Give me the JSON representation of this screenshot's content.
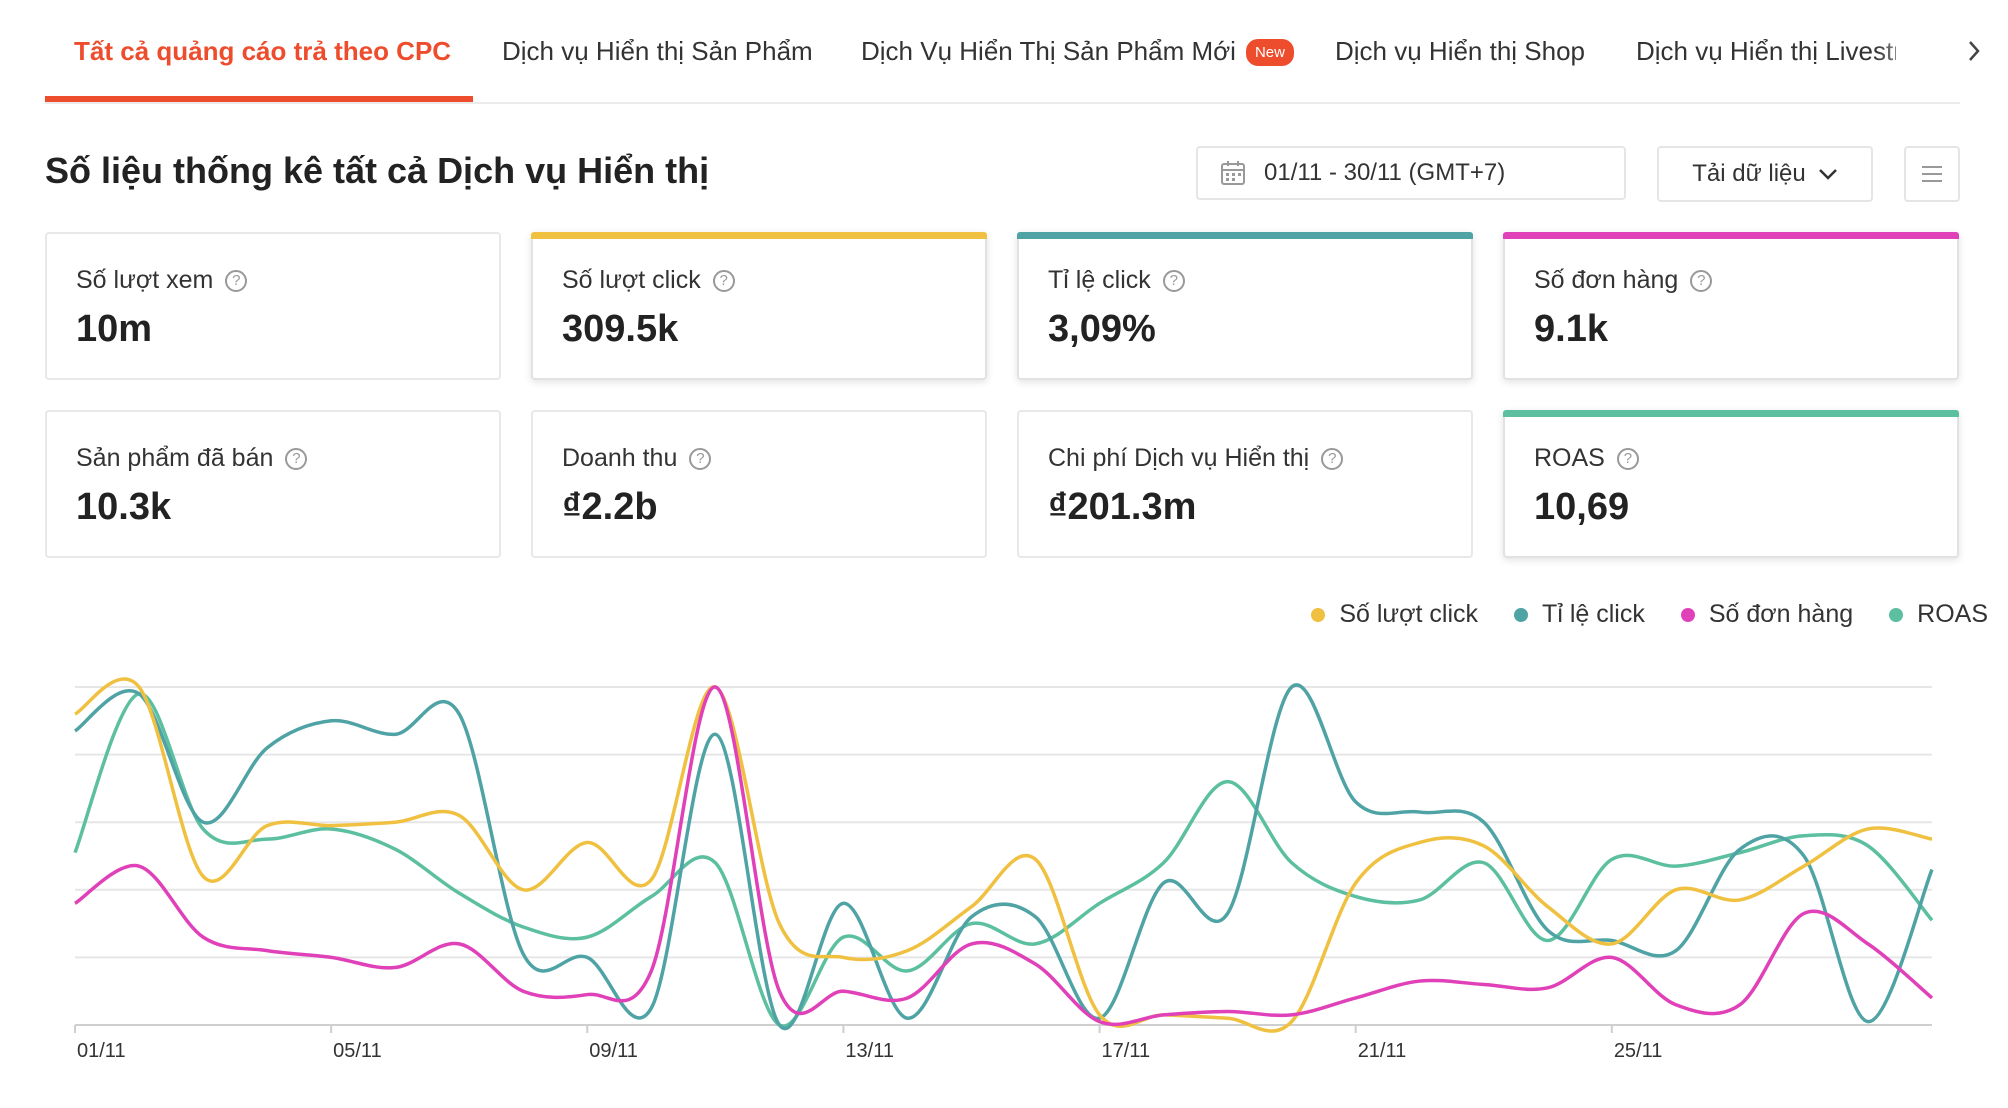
{
  "tabs": [
    {
      "label": "Tất cả quảng cáo trả theo CPC",
      "active": true
    },
    {
      "label": "Dịch vụ Hiển thị Sản Phẩm"
    },
    {
      "label": "Dịch Vụ Hiển Thị Sản Phẩm Mới",
      "badge": "New"
    },
    {
      "label": "Dịch vụ Hiển thị Shop"
    },
    {
      "label": "Dịch vụ Hiển thị Livestream"
    }
  ],
  "header": {
    "title": "Số liệu thống kê tất cả Dịch vụ Hiển thị",
    "date_range": "01/11 - 30/11 (GMT+7)",
    "download_label": "Tải dữ liệu"
  },
  "metrics": [
    {
      "label": "Số lượt xem",
      "value": "10m",
      "selected": false
    },
    {
      "label": "Số lượt click",
      "value": "309.5k",
      "selected": true,
      "color": "#f0c040"
    },
    {
      "label": "Tỉ lệ click",
      "value": "3,09%",
      "selected": true,
      "color": "#4fa3a5"
    },
    {
      "label": "Số đơn hàng",
      "value": "9.1k",
      "selected": true,
      "color": "#e040b8"
    },
    {
      "label": "Sản phẩm đã bán",
      "value": "10.3k",
      "selected": false
    },
    {
      "label": "Doanh thu",
      "value": "₫2.2b",
      "selected": false
    },
    {
      "label": "Chi phí Dịch vụ Hiển thị",
      "value": "₫201.3m",
      "selected": false
    },
    {
      "label": "ROAS",
      "value": "10,69",
      "selected": true,
      "color": "#5bbfa0"
    }
  ],
  "chart_data": {
    "type": "line",
    "categories": [
      "01/11",
      "02/11",
      "03/11",
      "04/11",
      "05/11",
      "06/11",
      "07/11",
      "08/11",
      "09/11",
      "10/11",
      "11/11",
      "12/11",
      "13/11",
      "14/11",
      "15/11",
      "16/11",
      "17/11",
      "18/11",
      "19/11",
      "20/11",
      "21/11",
      "22/11",
      "23/11",
      "24/11",
      "25/11",
      "26/11",
      "27/11",
      "28/11",
      "29/11",
      "30/11"
    ],
    "x_tick_labels": [
      "01/11",
      "05/11",
      "09/11",
      "13/11",
      "17/11",
      "21/11",
      "25/11"
    ],
    "grid": true,
    "legend_position": "top-right",
    "series": [
      {
        "name": "Số lượt click",
        "color": "#f0c040",
        "values": [
          92,
          100,
          44,
          59,
          59,
          60,
          62,
          40,
          54,
          43,
          100,
          30,
          20,
          22,
          35,
          49,
          3,
          3,
          2,
          1,
          42,
          54,
          53,
          35,
          24,
          40,
          37,
          47,
          58,
          55
        ]
      },
      {
        "name": "Tỉ lệ click",
        "color": "#4fa3a5",
        "values": [
          87,
          98,
          60,
          82,
          90,
          86,
          92,
          21,
          20,
          5,
          86,
          0,
          36,
          2,
          32,
          32,
          2,
          42,
          33,
          100,
          66,
          63,
          60,
          28,
          25,
          22,
          52,
          50,
          1,
          46
        ]
      },
      {
        "name": "Số đơn hàng",
        "color": "#e040b8",
        "values": [
          36,
          47,
          26,
          22,
          20,
          17,
          24,
          10,
          9,
          16,
          100,
          10,
          10,
          8,
          24,
          18,
          1,
          3,
          4,
          3,
          8,
          13,
          12,
          11,
          20,
          6,
          6,
          33,
          24,
          8
        ]
      },
      {
        "name": "ROAS",
        "color": "#5bbfa0",
        "values": [
          51,
          98,
          58,
          55,
          58,
          52,
          39,
          29,
          26,
          38,
          48,
          0,
          26,
          16,
          30,
          24,
          36,
          48,
          72,
          48,
          38,
          37,
          48,
          25,
          49,
          47,
          51,
          56,
          53,
          31
        ]
      }
    ]
  }
}
